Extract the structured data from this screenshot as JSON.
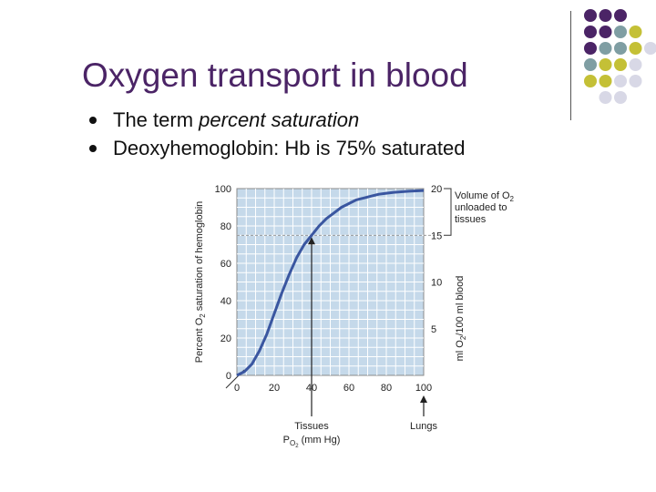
{
  "slide": {
    "title": "Oxygen transport in blood",
    "bullets": [
      {
        "parts": [
          {
            "text": "The term ",
            "italic": false
          },
          {
            "text": "percent saturation",
            "italic": true
          }
        ]
      },
      {
        "parts": [
          {
            "text": "Deoxyhemoglobin: Hb is 75% saturated",
            "italic": false
          }
        ]
      }
    ]
  },
  "decor": {
    "colors": {
      "purple": "#4b2466",
      "teal": "#7f9ea3",
      "olive": "#c4c036",
      "lavender": "#d8d8e6",
      "plot_bg": "#c5d9ea",
      "curve": "#3a56a0"
    },
    "dot_grid": [
      [
        "purple",
        "purple",
        "purple",
        "none",
        "none"
      ],
      [
        "purple",
        "purple",
        "teal",
        "olive",
        "none"
      ],
      [
        "purple",
        "teal",
        "teal",
        "olive",
        "lavender"
      ],
      [
        "teal",
        "olive",
        "olive",
        "lavender",
        "none"
      ],
      [
        "olive",
        "olive",
        "lavender",
        "lavender",
        "none"
      ],
      [
        "none",
        "lavender",
        "lavender",
        "none",
        "none"
      ]
    ]
  },
  "chart_data": {
    "type": "line",
    "title": "",
    "xlabel_main": "P",
    "xlabel_sub": "O",
    "xlabel_subsub": "2",
    "xlabel_rest": " (mm Hg)",
    "ylabel_left": {
      "pre": "Percent O",
      "sub": "2",
      "post": " saturation of hemoglobin"
    },
    "ylabel_right": {
      "pre": "ml O",
      "sub": "2",
      "post": "/100 ml blood"
    },
    "xlim": [
      0,
      100
    ],
    "ylim": [
      0,
      100
    ],
    "y2lim": [
      0,
      20
    ],
    "xticks": [
      0,
      20,
      40,
      60,
      80,
      100
    ],
    "yticks": [
      0,
      20,
      40,
      60,
      80,
      100
    ],
    "y2ticks": [
      5,
      10,
      15,
      20
    ],
    "grid": true,
    "series": [
      {
        "x": [
          0,
          4,
          8,
          12,
          16,
          20,
          24,
          28,
          32,
          36,
          40,
          44,
          48,
          52,
          56,
          60,
          64,
          68,
          72,
          76,
          80,
          84,
          88,
          92,
          96,
          100
        ],
        "y": [
          0,
          2,
          6,
          13,
          22,
          33,
          44,
          54,
          63,
          70,
          75,
          80,
          84,
          87,
          90,
          92,
          94,
          95,
          96,
          97,
          97.5,
          98,
          98.3,
          98.6,
          98.8,
          99
        ]
      }
    ],
    "reference_line": {
      "y2": 15
    },
    "annotations": {
      "tissues": {
        "label": "Tissues",
        "x": 40
      },
      "lungs": {
        "label": "Lungs",
        "x": 100
      },
      "bracket": {
        "lines": [
          "Volume of O",
          "unloaded to",
          "tissues"
        ],
        "sub": "2",
        "from_y2": 15,
        "to_y2": 20
      }
    }
  }
}
